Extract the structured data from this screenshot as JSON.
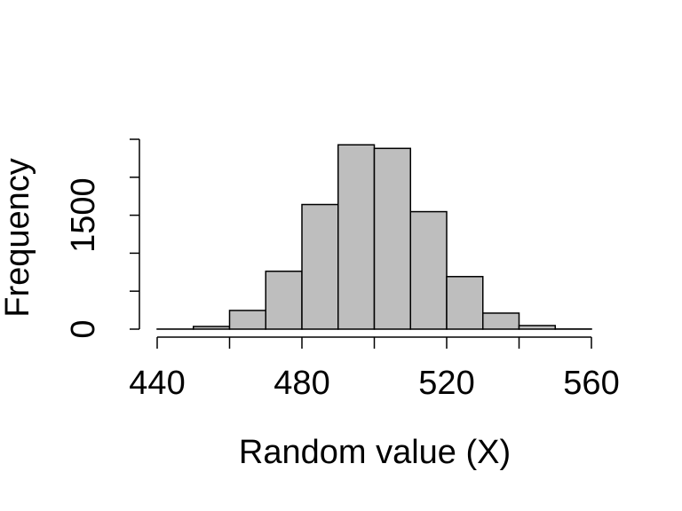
{
  "chart_data": {
    "type": "histogram",
    "xlabel": "Random value (X)",
    "ylabel": "Frequency",
    "bins": [
      440,
      450,
      460,
      470,
      480,
      490,
      500,
      510,
      520,
      530,
      540,
      550,
      560
    ],
    "values": [
      1,
      35,
      246,
      762,
      1641,
      2427,
      2380,
      1547,
      692,
      211,
      47,
      2
    ],
    "color": "#bebebe",
    "xlim": [
      440,
      560
    ],
    "xticks": [
      440,
      460,
      480,
      500,
      520,
      540,
      560
    ],
    "ylim": [
      0,
      2500
    ],
    "yticks": [
      0,
      500,
      1000,
      1500,
      2000,
      2500
    ]
  }
}
